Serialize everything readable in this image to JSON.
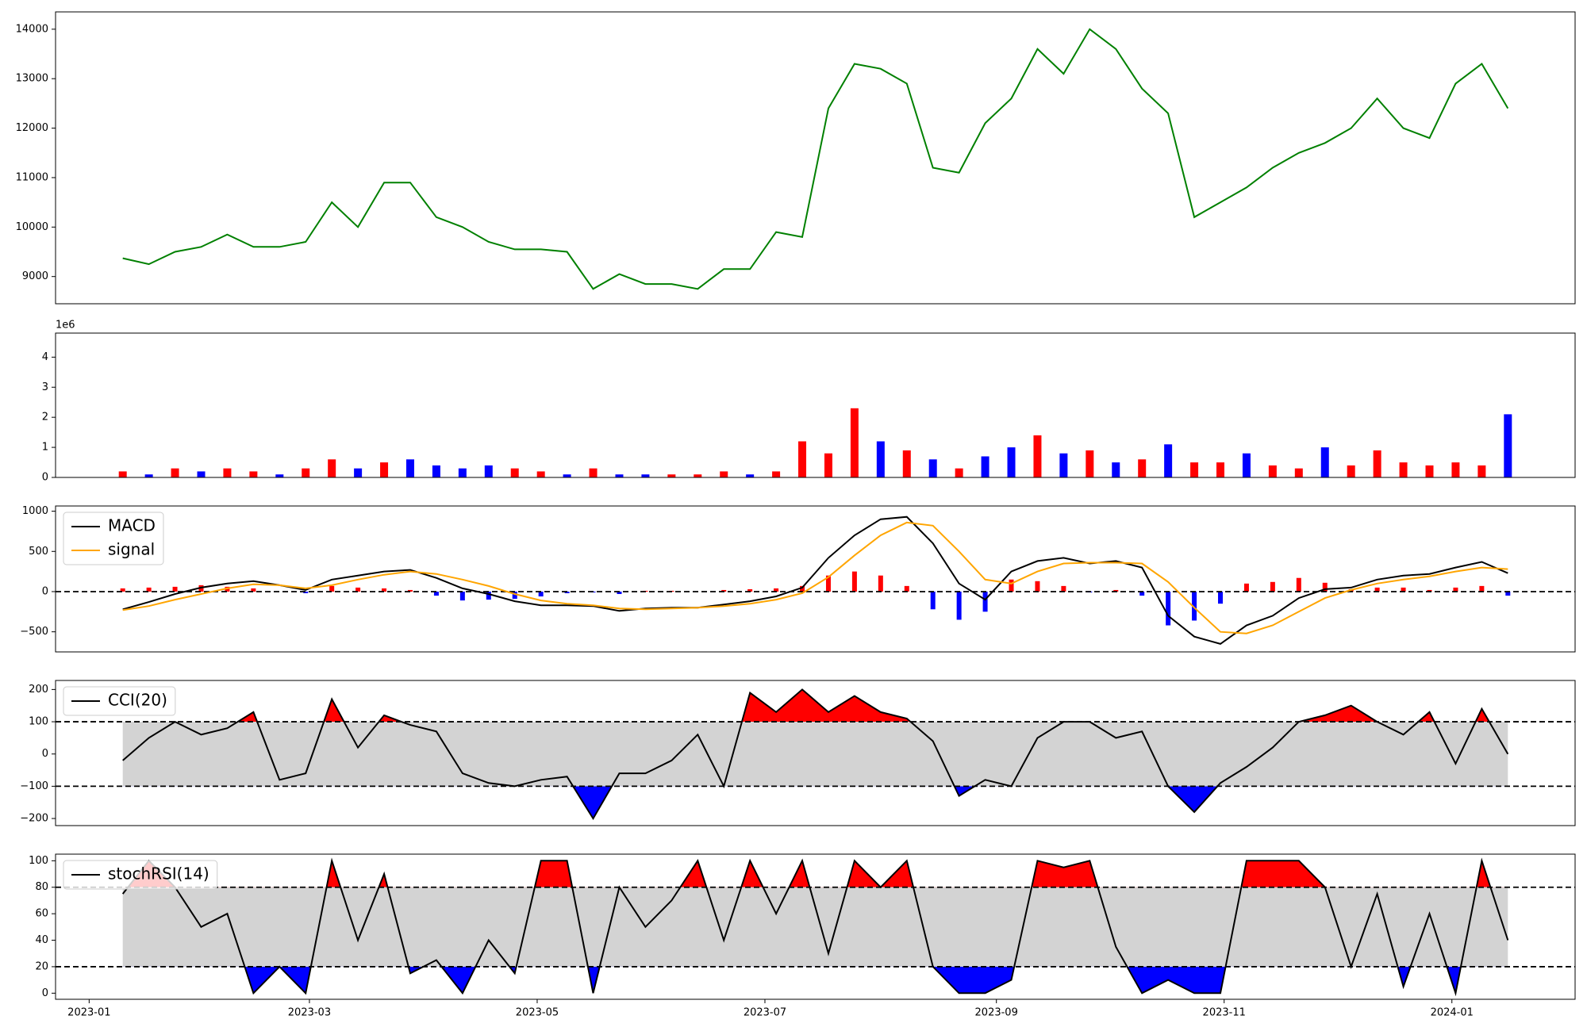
{
  "chart_data": [
    {
      "type": "line",
      "x": [
        "2023-01-10",
        "2023-01-17",
        "2023-01-24",
        "2023-01-31",
        "2023-02-07",
        "2023-02-14",
        "2023-02-21",
        "2023-02-28",
        "2023-03-07",
        "2023-03-14",
        "2023-03-21",
        "2023-03-28",
        "2023-04-04",
        "2023-04-11",
        "2023-04-18",
        "2023-04-25",
        "2023-05-02",
        "2023-05-09",
        "2023-05-16",
        "2023-05-23",
        "2023-05-30",
        "2023-06-06",
        "2023-06-13",
        "2023-06-20",
        "2023-06-27",
        "2023-07-04",
        "2023-07-11",
        "2023-07-18",
        "2023-07-25",
        "2023-08-01",
        "2023-08-08",
        "2023-08-15",
        "2023-08-22",
        "2023-08-29",
        "2023-09-05",
        "2023-09-12",
        "2023-09-19",
        "2023-09-26",
        "2023-10-03",
        "2023-10-10",
        "2023-10-17",
        "2023-10-24",
        "2023-10-31",
        "2023-11-07",
        "2023-11-14",
        "2023-11-21",
        "2023-11-28",
        "2023-12-05",
        "2023-12-12",
        "2023-12-19",
        "2023-12-26",
        "2024-01-02",
        "2024-01-09",
        "2024-01-16"
      ],
      "values": [
        9370,
        9250,
        9500,
        9600,
        9850,
        9600,
        9600,
        9700,
        10500,
        10000,
        10900,
        10900,
        10200,
        10000,
        9700,
        9550,
        9550,
        9500,
        8750,
        9050,
        8850,
        8850,
        8750,
        9150,
        9150,
        9900,
        9800,
        12400,
        13300,
        13200,
        12900,
        11200,
        11100,
        12100,
        12600,
        13600,
        13100,
        14000,
        13600,
        12800,
        12300,
        10200,
        10500,
        10800,
        11200,
        11500,
        11700,
        12000,
        12600,
        12000,
        11800,
        12900,
        13300,
        12400
      ],
      "color": "green",
      "xlim": [
        "2022-12-23",
        "2024-02-03"
      ],
      "ylim": [
        8450,
        14350
      ],
      "yticks": [
        9000,
        10000,
        11000,
        12000,
        13000,
        14000
      ]
    },
    {
      "type": "bar",
      "x": [
        "2023-01-10",
        "2023-01-17",
        "2023-01-24",
        "2023-01-31",
        "2023-02-07",
        "2023-02-14",
        "2023-02-21",
        "2023-02-28",
        "2023-03-07",
        "2023-03-14",
        "2023-03-21",
        "2023-03-28",
        "2023-04-04",
        "2023-04-11",
        "2023-04-18",
        "2023-04-25",
        "2023-05-02",
        "2023-05-09",
        "2023-05-16",
        "2023-05-23",
        "2023-05-30",
        "2023-06-06",
        "2023-06-13",
        "2023-06-20",
        "2023-06-27",
        "2023-07-04",
        "2023-07-11",
        "2023-07-18",
        "2023-07-25",
        "2023-08-01",
        "2023-08-08",
        "2023-08-15",
        "2023-08-22",
        "2023-08-29",
        "2023-09-05",
        "2023-09-12",
        "2023-09-19",
        "2023-09-26",
        "2023-10-03",
        "2023-10-10",
        "2023-10-17",
        "2023-10-24",
        "2023-10-31",
        "2023-11-07",
        "2023-11-14",
        "2023-11-21",
        "2023-11-28",
        "2023-12-05",
        "2023-12-12",
        "2023-12-19",
        "2023-12-26",
        "2024-01-02",
        "2024-01-09",
        "2024-01-16"
      ],
      "values": [
        0.2,
        0.1,
        0.3,
        0.2,
        0.3,
        0.2,
        0.1,
        0.3,
        0.6,
        0.3,
        0.5,
        0.6,
        0.4,
        0.3,
        0.4,
        0.3,
        0.2,
        0.1,
        0.3,
        0.1,
        0.1,
        0.1,
        0.1,
        0.2,
        0.1,
        0.2,
        1.2,
        0.8,
        2.3,
        1.2,
        0.9,
        0.6,
        0.3,
        0.7,
        1.0,
        1.4,
        0.8,
        0.9,
        0.5,
        0.6,
        1.1,
        0.5,
        0.5,
        0.8,
        0.4,
        0.3,
        1.0,
        0.4,
        0.9,
        0.5,
        0.4,
        0.5,
        0.4,
        2.1
      ],
      "colors": [
        "red",
        "blue",
        "red",
        "blue",
        "red",
        "red",
        "blue",
        "red",
        "red",
        "blue",
        "red",
        "blue",
        "blue",
        "blue",
        "blue",
        "red",
        "red",
        "blue",
        "red",
        "blue",
        "blue",
        "red",
        "red",
        "red",
        "blue",
        "red",
        "red",
        "red",
        "red",
        "blue",
        "red",
        "blue",
        "red",
        "blue",
        "blue",
        "red",
        "blue",
        "red",
        "blue",
        "red",
        "blue",
        "red",
        "red",
        "blue",
        "red",
        "red",
        "blue",
        "red",
        "red",
        "red",
        "red",
        "red",
        "red",
        "blue"
      ],
      "offset_label": "1e6",
      "xlim": [
        "2022-12-23",
        "2024-02-03"
      ],
      "ylim": [
        0,
        4.8
      ],
      "yticks": [
        0,
        1,
        2,
        3,
        4
      ]
    },
    {
      "type": "macd",
      "x": [
        "2023-01-10",
        "2023-01-17",
        "2023-01-24",
        "2023-01-31",
        "2023-02-07",
        "2023-02-14",
        "2023-02-21",
        "2023-02-28",
        "2023-03-07",
        "2023-03-14",
        "2023-03-21",
        "2023-03-28",
        "2023-04-04",
        "2023-04-11",
        "2023-04-18",
        "2023-04-25",
        "2023-05-02",
        "2023-05-09",
        "2023-05-16",
        "2023-05-23",
        "2023-05-30",
        "2023-06-06",
        "2023-06-13",
        "2023-06-20",
        "2023-06-27",
        "2023-07-04",
        "2023-07-11",
        "2023-07-18",
        "2023-07-25",
        "2023-08-01",
        "2023-08-08",
        "2023-08-15",
        "2023-08-22",
        "2023-08-29",
        "2023-09-05",
        "2023-09-12",
        "2023-09-19",
        "2023-09-26",
        "2023-10-03",
        "2023-10-10",
        "2023-10-17",
        "2023-10-24",
        "2023-10-31",
        "2023-11-07",
        "2023-11-14",
        "2023-11-21",
        "2023-11-28",
        "2023-12-05",
        "2023-12-12",
        "2023-12-19",
        "2023-12-26",
        "2024-01-02",
        "2024-01-09",
        "2024-01-16"
      ],
      "series": [
        {
          "name": "MACD",
          "color": "black",
          "values": [
            -220,
            -130,
            -30,
            50,
            100,
            130,
            80,
            20,
            150,
            200,
            250,
            270,
            170,
            40,
            -30,
            -120,
            -170,
            -170,
            -180,
            -240,
            -210,
            -200,
            -200,
            -160,
            -120,
            -60,
            50,
            420,
            700,
            900,
            930,
            600,
            100,
            -100,
            250,
            380,
            420,
            350,
            380,
            300,
            -300,
            -560,
            -650,
            -420,
            -300,
            -80,
            30,
            50,
            150,
            200,
            220,
            300,
            370,
            230
          ]
        },
        {
          "name": "signal",
          "color": "orange",
          "values": [
            -230,
            -180,
            -100,
            -30,
            40,
            90,
            80,
            40,
            80,
            150,
            210,
            250,
            220,
            150,
            70,
            -30,
            -110,
            -150,
            -170,
            -210,
            -220,
            -210,
            -200,
            -180,
            -150,
            -100,
            -20,
            180,
            450,
            700,
            860,
            820,
            500,
            150,
            100,
            250,
            350,
            360,
            360,
            350,
            120,
            -200,
            -500,
            -520,
            -420,
            -250,
            -80,
            20,
            100,
            150,
            190,
            250,
            300,
            280
          ]
        }
      ],
      "histogram": {
        "values": [
          40,
          50,
          60,
          80,
          60,
          40,
          0,
          -20,
          70,
          50,
          40,
          20,
          -50,
          -110,
          -100,
          -90,
          -60,
          -20,
          -10,
          -30,
          10,
          10,
          0,
          20,
          30,
          40,
          70,
          200,
          250,
          200,
          70,
          -220,
          -350,
          -250,
          150,
          130,
          70,
          -10,
          20,
          -50,
          -420,
          -360,
          -150,
          100,
          120,
          170,
          110,
          30,
          50,
          50,
          20,
          50,
          70,
          -50
        ],
        "pos_color": "red",
        "neg_color": "blue"
      },
      "hlines": [
        0
      ],
      "legend": "upper left",
      "xlim": [
        "2022-12-23",
        "2024-02-03"
      ],
      "ylim": [
        -750,
        1065
      ],
      "yticks": [
        {
          "value": -500,
          "label": "−500"
        },
        0,
        500,
        1000
      ]
    },
    {
      "type": "oscillator",
      "x": [
        "2023-01-10",
        "2023-01-17",
        "2023-01-24",
        "2023-01-31",
        "2023-02-07",
        "2023-02-14",
        "2023-02-21",
        "2023-02-28",
        "2023-03-07",
        "2023-03-14",
        "2023-03-21",
        "2023-03-28",
        "2023-04-04",
        "2023-04-11",
        "2023-04-18",
        "2023-04-25",
        "2023-05-02",
        "2023-05-09",
        "2023-05-16",
        "2023-05-23",
        "2023-05-30",
        "2023-06-06",
        "2023-06-13",
        "2023-06-20",
        "2023-06-27",
        "2023-07-04",
        "2023-07-11",
        "2023-07-18",
        "2023-07-25",
        "2023-08-01",
        "2023-08-08",
        "2023-08-15",
        "2023-08-22",
        "2023-08-29",
        "2023-09-05",
        "2023-09-12",
        "2023-09-19",
        "2023-09-26",
        "2023-10-03",
        "2023-10-10",
        "2023-10-17",
        "2023-10-24",
        "2023-10-31",
        "2023-11-07",
        "2023-11-14",
        "2023-11-21",
        "2023-11-28",
        "2023-12-05",
        "2023-12-12",
        "2023-12-19",
        "2023-12-26",
        "2024-01-02",
        "2024-01-09",
        "2024-01-16"
      ],
      "series": [
        {
          "name": "CCI(20)",
          "color": "black",
          "values": [
            -20,
            50,
            100,
            60,
            80,
            130,
            -80,
            -60,
            170,
            20,
            120,
            90,
            70,
            -60,
            -90,
            -100,
            -80,
            -70,
            -200,
            -60,
            -60,
            -20,
            60,
            -100,
            190,
            130,
            200,
            130,
            180,
            130,
            110,
            40,
            -130,
            -80,
            -100,
            50,
            100,
            100,
            50,
            70,
            -100,
            -180,
            -90,
            -40,
            20,
            100,
            120,
            150,
            100,
            60,
            130,
            -30,
            140,
            0
          ]
        }
      ],
      "band": [
        -100,
        100
      ],
      "band_color": "lightgray",
      "upper_color": "red",
      "lower_color": "blue",
      "legend": "upper left",
      "xlim": [
        "2022-12-23",
        "2024-02-03"
      ],
      "ylim": [
        -222,
        228
      ],
      "yticks": [
        {
          "value": -200,
          "label": "−200"
        },
        {
          "value": -100,
          "label": "−100"
        },
        0,
        100,
        200
      ]
    },
    {
      "type": "oscillator",
      "x": [
        "2023-01-10",
        "2023-01-17",
        "2023-01-24",
        "2023-01-31",
        "2023-02-07",
        "2023-02-14",
        "2023-02-21",
        "2023-02-28",
        "2023-03-07",
        "2023-03-14",
        "2023-03-21",
        "2023-03-28",
        "2023-04-04",
        "2023-04-11",
        "2023-04-18",
        "2023-04-25",
        "2023-05-02",
        "2023-05-09",
        "2023-05-16",
        "2023-05-23",
        "2023-05-30",
        "2023-06-06",
        "2023-06-13",
        "2023-06-20",
        "2023-06-27",
        "2023-07-04",
        "2023-07-11",
        "2023-07-18",
        "2023-07-25",
        "2023-08-01",
        "2023-08-08",
        "2023-08-15",
        "2023-08-22",
        "2023-08-29",
        "2023-09-05",
        "2023-09-12",
        "2023-09-19",
        "2023-09-26",
        "2023-10-03",
        "2023-10-10",
        "2023-10-17",
        "2023-10-24",
        "2023-10-31",
        "2023-11-07",
        "2023-11-14",
        "2023-11-21",
        "2023-11-28",
        "2023-12-05",
        "2023-12-12",
        "2023-12-19",
        "2023-12-26",
        "2024-01-02",
        "2024-01-09",
        "2024-01-16"
      ],
      "series": [
        {
          "name": "stochRSI(14)",
          "color": "black",
          "values": [
            75,
            100,
            80,
            50,
            60,
            0,
            20,
            0,
            100,
            40,
            90,
            15,
            25,
            0,
            40,
            15,
            100,
            100,
            0,
            80,
            50,
            70,
            100,
            40,
            100,
            60,
            100,
            30,
            100,
            80,
            100,
            20,
            0,
            0,
            10,
            100,
            95,
            100,
            35,
            0,
            10,
            0,
            0,
            100,
            100,
            100,
            80,
            20,
            75,
            5,
            60,
            0,
            100,
            40
          ]
        }
      ],
      "band": [
        20,
        80
      ],
      "band_color": "lightgray",
      "upper_color": "red",
      "lower_color": "blue",
      "legend": "upper left",
      "xlim": [
        "2022-12-23",
        "2024-02-03"
      ],
      "ylim": [
        -4.6,
        105
      ],
      "yticks": [
        0,
        20,
        40,
        60,
        80,
        100
      ],
      "xticks": [
        "2023-01",
        "2023-03",
        "2023-05",
        "2023-07",
        "2023-09",
        "2023-11",
        "2024-01"
      ]
    }
  ]
}
